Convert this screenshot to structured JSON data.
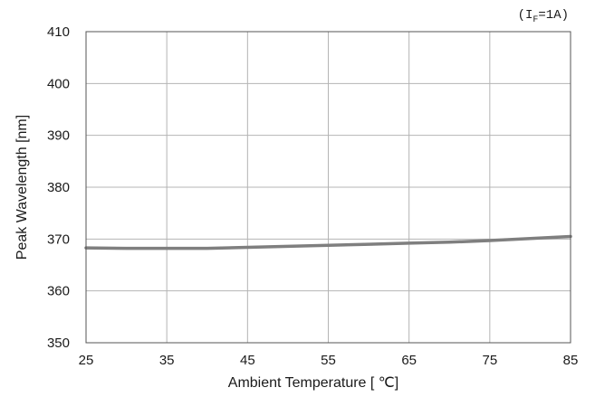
{
  "chart_data": {
    "type": "line",
    "title": "",
    "condition": {
      "prefix": "(I",
      "subscript": "F",
      "suffix": "=1A)"
    },
    "xlabel": "Ambient Temperature [ ℃]",
    "ylabel": "Peak Wavelength [nm]",
    "xlim": [
      25,
      85
    ],
    "ylim": [
      350,
      410
    ],
    "x_ticks": [
      "25",
      "35",
      "45",
      "55",
      "65",
      "75",
      "85"
    ],
    "y_ticks": [
      "410",
      "400",
      "390",
      "380",
      "370",
      "360",
      "350"
    ],
    "grid": true,
    "series": [
      {
        "color": "#7f7f7f",
        "x": [
          25,
          30,
          35,
          40,
          45,
          50,
          55,
          60,
          65,
          70,
          75,
          80,
          85
        ],
        "y": [
          368.3,
          368.2,
          368.2,
          368.2,
          368.4,
          368.6,
          368.8,
          369.0,
          369.2,
          369.4,
          369.7,
          370.1,
          370.5
        ]
      }
    ]
  }
}
